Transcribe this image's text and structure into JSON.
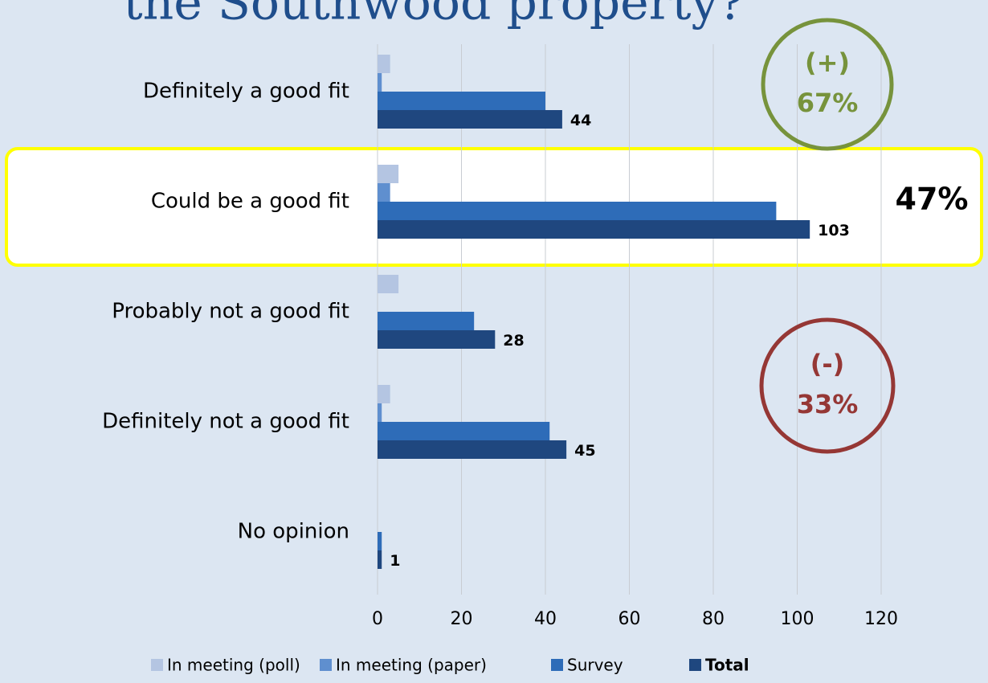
{
  "chart_data": {
    "type": "bar",
    "orientation": "horizontal",
    "title": "the Southwood property?",
    "categories": [
      "Definitely a good fit",
      "Could be a good fit",
      "Probably not a good fit",
      "Definitely not a good fit",
      "No opinion"
    ],
    "series": [
      {
        "name": "In meeting (poll)",
        "color": "#b4c5e2",
        "values": [
          3,
          5,
          5,
          3,
          0
        ]
      },
      {
        "name": "In meeting (paper)",
        "color": "#5f8fcf",
        "values": [
          1,
          3,
          0,
          1,
          0
        ]
      },
      {
        "name": "Survey",
        "color": "#2e6cb8",
        "values": [
          40,
          95,
          23,
          41,
          1
        ]
      },
      {
        "name": "Total",
        "color": "#1f477f",
        "values": [
          44,
          103,
          28,
          45,
          1
        ],
        "data_labels": true
      }
    ],
    "xlim": [
      0,
      120
    ],
    "xticks": [
      0,
      20,
      40,
      60,
      80,
      100,
      120
    ],
    "grid": true,
    "legend": "bottom",
    "highlight_category": 1,
    "annotations": [
      {
        "lines": [
          "(+)",
          "67%"
        ],
        "color": "#77933c"
      },
      {
        "lines": [
          "(-)",
          "33%"
        ],
        "color": "#953735"
      },
      {
        "lines": [
          "47%"
        ],
        "color": "#000000"
      }
    ]
  }
}
